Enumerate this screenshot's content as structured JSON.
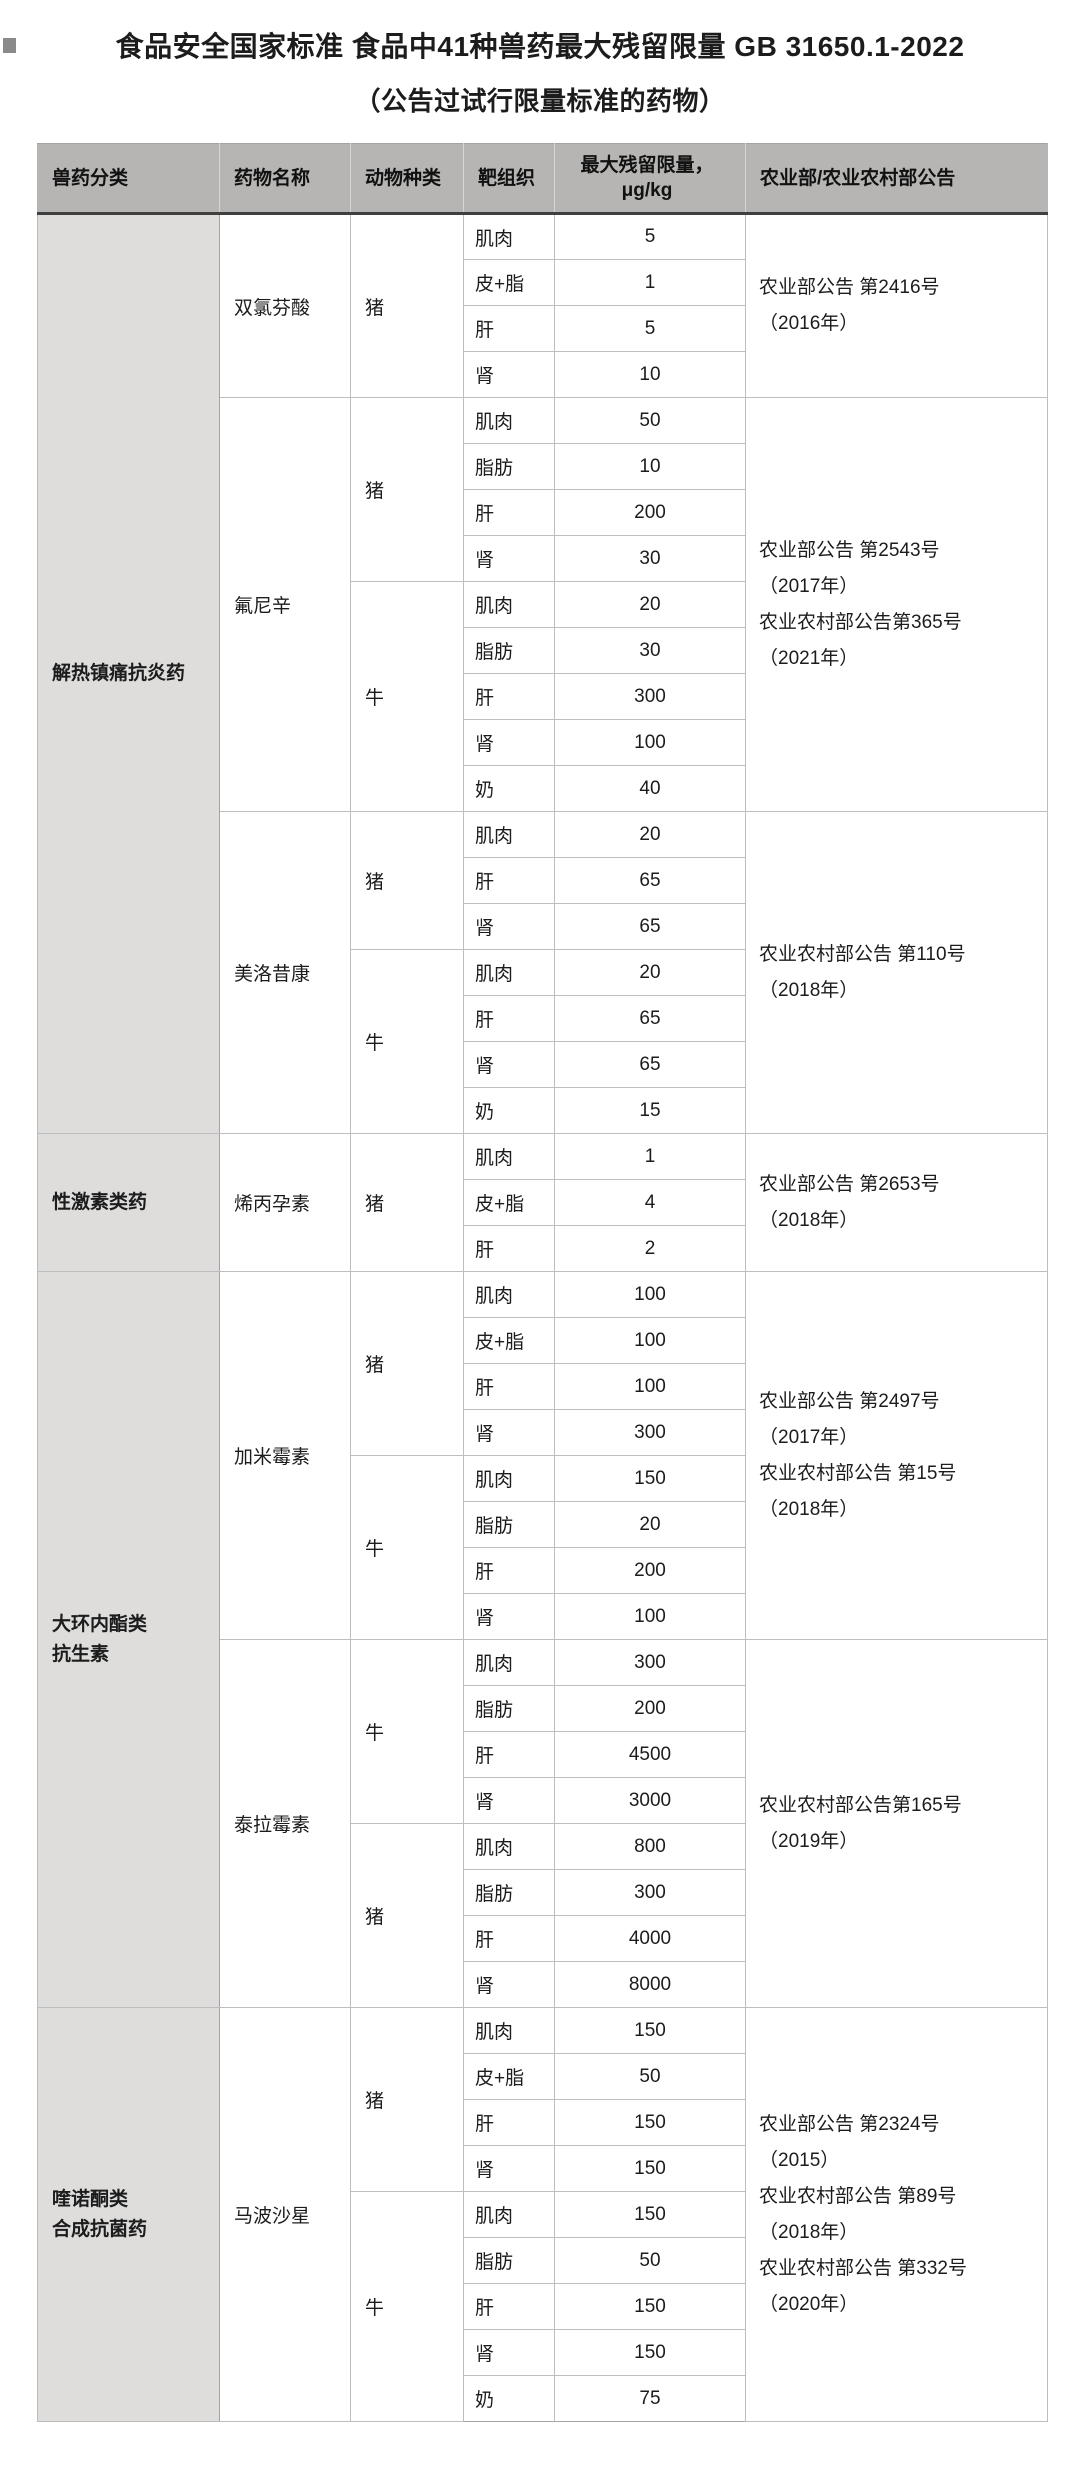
{
  "title": "食品安全国家标准 食品中41种兽药最大残留限量 GB 31650.1-2022",
  "subtitle": "（公告过试行限量标准的药物）",
  "colors": {
    "header_bg": "#b6b5b3",
    "category_bg": "#dedddc",
    "grid_line": "#bdbdbd",
    "header_bottom_rule": "#3f3f3f",
    "text": "#1c1c1c"
  },
  "table": {
    "unit": "μg/kg",
    "headers": [
      {
        "lines": [
          "兽药分类"
        ],
        "align": "left"
      },
      {
        "lines": [
          "药物名称"
        ],
        "align": "left"
      },
      {
        "lines": [
          "动物种类"
        ],
        "align": "left"
      },
      {
        "lines": [
          "靶组织"
        ],
        "align": "left"
      },
      {
        "lines": [
          "最大残留限量，",
          "μg/kg"
        ],
        "align": "center"
      },
      {
        "lines": [
          "农业部/农业农村部公告"
        ],
        "align": "left"
      }
    ],
    "categories": [
      {
        "name_lines": [
          "解热镇痛抗炎药"
        ],
        "drugs": [
          {
            "name": "双氯芬酸",
            "announcement_lines": [
              "农业部公告 第2416号",
              " （2016年）"
            ],
            "species": [
              {
                "name": "猪",
                "tissues": [
                  {
                    "tissue": "肌肉",
                    "limit": "5"
                  },
                  {
                    "tissue": "皮+脂",
                    "limit": "1"
                  },
                  {
                    "tissue": "肝",
                    "limit": "5"
                  },
                  {
                    "tissue": "肾",
                    "limit": "10"
                  }
                ]
              }
            ]
          },
          {
            "name": "氟尼辛",
            "announcement_lines": [
              "农业部公告 第2543号",
              " （2017年）",
              "农业农村部公告第365号",
              " （2021年）"
            ],
            "species": [
              {
                "name": "猪",
                "tissues": [
                  {
                    "tissue": "肌肉",
                    "limit": "50"
                  },
                  {
                    "tissue": "脂肪",
                    "limit": "10"
                  },
                  {
                    "tissue": "肝",
                    "limit": "200"
                  },
                  {
                    "tissue": "肾",
                    "limit": "30"
                  }
                ]
              },
              {
                "name": "牛",
                "tissues": [
                  {
                    "tissue": "肌肉",
                    "limit": "20"
                  },
                  {
                    "tissue": "脂肪",
                    "limit": "30"
                  },
                  {
                    "tissue": "肝",
                    "limit": "300"
                  },
                  {
                    "tissue": "肾",
                    "limit": "100"
                  },
                  {
                    "tissue": "奶",
                    "limit": "40"
                  }
                ]
              }
            ]
          },
          {
            "name": "美洛昔康",
            "announcement_lines": [
              "农业农村部公告 第110号",
              " （2018年）"
            ],
            "species": [
              {
                "name": "猪",
                "tissues": [
                  {
                    "tissue": "肌肉",
                    "limit": "20"
                  },
                  {
                    "tissue": "肝",
                    "limit": "65"
                  },
                  {
                    "tissue": "肾",
                    "limit": "65"
                  }
                ]
              },
              {
                "name": "牛",
                "tissues": [
                  {
                    "tissue": "肌肉",
                    "limit": "20"
                  },
                  {
                    "tissue": "肝",
                    "limit": "65"
                  },
                  {
                    "tissue": "肾",
                    "limit": "65"
                  },
                  {
                    "tissue": "奶",
                    "limit": "15"
                  }
                ]
              }
            ]
          }
        ]
      },
      {
        "name_lines": [
          "性激素类药"
        ],
        "drugs": [
          {
            "name": "烯丙孕素",
            "announcement_lines": [
              "农业部公告 第2653号",
              " （2018年）"
            ],
            "species": [
              {
                "name": "猪",
                "tissues": [
                  {
                    "tissue": "肌肉",
                    "limit": "1"
                  },
                  {
                    "tissue": "皮+脂",
                    "limit": "4"
                  },
                  {
                    "tissue": "肝",
                    "limit": "2"
                  }
                ]
              }
            ]
          }
        ]
      },
      {
        "name_lines": [
          "大环内酯类",
          "抗生素"
        ],
        "drugs": [
          {
            "name": "加米霉素",
            "announcement_lines": [
              "农业部公告 第2497号",
              " （2017年）",
              "农业农村部公告 第15号",
              " （2018年）"
            ],
            "species": [
              {
                "name": "猪",
                "tissues": [
                  {
                    "tissue": "肌肉",
                    "limit": "100"
                  },
                  {
                    "tissue": "皮+脂",
                    "limit": "100"
                  },
                  {
                    "tissue": "肝",
                    "limit": "100"
                  },
                  {
                    "tissue": "肾",
                    "limit": "300"
                  }
                ]
              },
              {
                "name": "牛",
                "tissues": [
                  {
                    "tissue": "肌肉",
                    "limit": "150"
                  },
                  {
                    "tissue": "脂肪",
                    "limit": "20"
                  },
                  {
                    "tissue": "肝",
                    "limit": "200"
                  },
                  {
                    "tissue": "肾",
                    "limit": "100"
                  }
                ]
              }
            ]
          },
          {
            "name": "泰拉霉素",
            "announcement_lines": [
              "农业农村部公告第165号",
              " （2019年）"
            ],
            "species": [
              {
                "name": "牛",
                "tissues": [
                  {
                    "tissue": "肌肉",
                    "limit": "300"
                  },
                  {
                    "tissue": "脂肪",
                    "limit": "200"
                  },
                  {
                    "tissue": "肝",
                    "limit": "4500"
                  },
                  {
                    "tissue": "肾",
                    "limit": "3000"
                  }
                ]
              },
              {
                "name": "猪",
                "tissues": [
                  {
                    "tissue": "肌肉",
                    "limit": "800"
                  },
                  {
                    "tissue": "脂肪",
                    "limit": "300"
                  },
                  {
                    "tissue": "肝",
                    "limit": "4000"
                  },
                  {
                    "tissue": "肾",
                    "limit": "8000"
                  }
                ]
              }
            ]
          }
        ]
      },
      {
        "name_lines": [
          "喹诺酮类",
          "合成抗菌药"
        ],
        "drugs": [
          {
            "name": "马波沙星",
            "announcement_lines": [
              "农业部公告 第2324号",
              " （2015）",
              "农业农村部公告 第89号",
              " （2018年）",
              "农业农村部公告 第332号",
              " （2020年）"
            ],
            "species": [
              {
                "name": "猪",
                "tissues": [
                  {
                    "tissue": "肌肉",
                    "limit": "150"
                  },
                  {
                    "tissue": "皮+脂",
                    "limit": "50"
                  },
                  {
                    "tissue": "肝",
                    "limit": "150"
                  },
                  {
                    "tissue": "肾",
                    "limit": "150"
                  }
                ]
              },
              {
                "name": "牛",
                "tissues": [
                  {
                    "tissue": "肌肉",
                    "limit": "150"
                  },
                  {
                    "tissue": "脂肪",
                    "limit": "50"
                  },
                  {
                    "tissue": "肝",
                    "limit": "150"
                  },
                  {
                    "tissue": "肾",
                    "limit": "150"
                  },
                  {
                    "tissue": "奶",
                    "limit": "75"
                  }
                ]
              }
            ]
          }
        ]
      }
    ]
  }
}
